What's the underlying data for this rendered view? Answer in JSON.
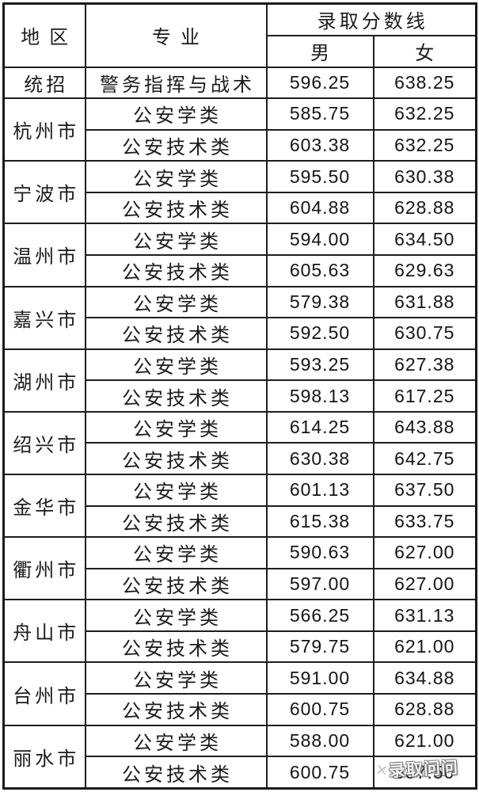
{
  "table": {
    "headers": {
      "region": "地区",
      "major": "专业",
      "score_line": "录取分数线",
      "male": "男",
      "female": "女"
    },
    "groups": [
      {
        "region": "统招",
        "rows": [
          {
            "major": "警务指挥与战术",
            "male": "596.25",
            "female": "638.25"
          }
        ]
      },
      {
        "region": "杭州市",
        "rows": [
          {
            "major": "公安学类",
            "male": "585.75",
            "female": "632.25"
          },
          {
            "major": "公安技术类",
            "male": "603.38",
            "female": "632.25"
          }
        ]
      },
      {
        "region": "宁波市",
        "rows": [
          {
            "major": "公安学类",
            "male": "595.50",
            "female": "630.38"
          },
          {
            "major": "公安技术类",
            "male": "604.88",
            "female": "628.88"
          }
        ]
      },
      {
        "region": "温州市",
        "rows": [
          {
            "major": "公安学类",
            "male": "594.00",
            "female": "634.50"
          },
          {
            "major": "公安技术类",
            "male": "605.63",
            "female": "629.63"
          }
        ]
      },
      {
        "region": "嘉兴市",
        "rows": [
          {
            "major": "公安学类",
            "male": "579.38",
            "female": "631.88"
          },
          {
            "major": "公安技术类",
            "male": "592.50",
            "female": "630.75"
          }
        ]
      },
      {
        "region": "湖州市",
        "rows": [
          {
            "major": "公安学类",
            "male": "593.25",
            "female": "627.38"
          },
          {
            "major": "公安技术类",
            "male": "598.13",
            "female": "617.25"
          }
        ]
      },
      {
        "region": "绍兴市",
        "rows": [
          {
            "major": "公安学类",
            "male": "614.25",
            "female": "643.88"
          },
          {
            "major": "公安技术类",
            "male": "630.38",
            "female": "642.75"
          }
        ]
      },
      {
        "region": "金华市",
        "rows": [
          {
            "major": "公安学类",
            "male": "601.13",
            "female": "637.50"
          },
          {
            "major": "公安技术类",
            "male": "615.38",
            "female": "633.75"
          }
        ]
      },
      {
        "region": "衢州市",
        "rows": [
          {
            "major": "公安学类",
            "male": "590.63",
            "female": "627.00"
          },
          {
            "major": "公安技术类",
            "male": "597.00",
            "female": "627.00"
          }
        ]
      },
      {
        "region": "舟山市",
        "rows": [
          {
            "major": "公安学类",
            "male": "566.25",
            "female": "631.13"
          },
          {
            "major": "公安技术类",
            "male": "579.75",
            "female": "621.00"
          }
        ]
      },
      {
        "region": "台州市",
        "rows": [
          {
            "major": "公安学类",
            "male": "591.00",
            "female": "634.88"
          },
          {
            "major": "公安技术类",
            "male": "600.75",
            "female": "628.88"
          }
        ]
      },
      {
        "region": "丽水市",
        "rows": [
          {
            "major": "公安学类",
            "male": "588.00",
            "female": "621.00"
          },
          {
            "major": "公安技术类",
            "male": "600.75",
            "female": "637.50"
          }
        ]
      }
    ]
  },
  "watermark": {
    "mark": "✕",
    "text": "录取问问"
  },
  "colors": {
    "border": "#1e1e1e",
    "text": "#1b1b1b",
    "background": "#ffffff"
  }
}
